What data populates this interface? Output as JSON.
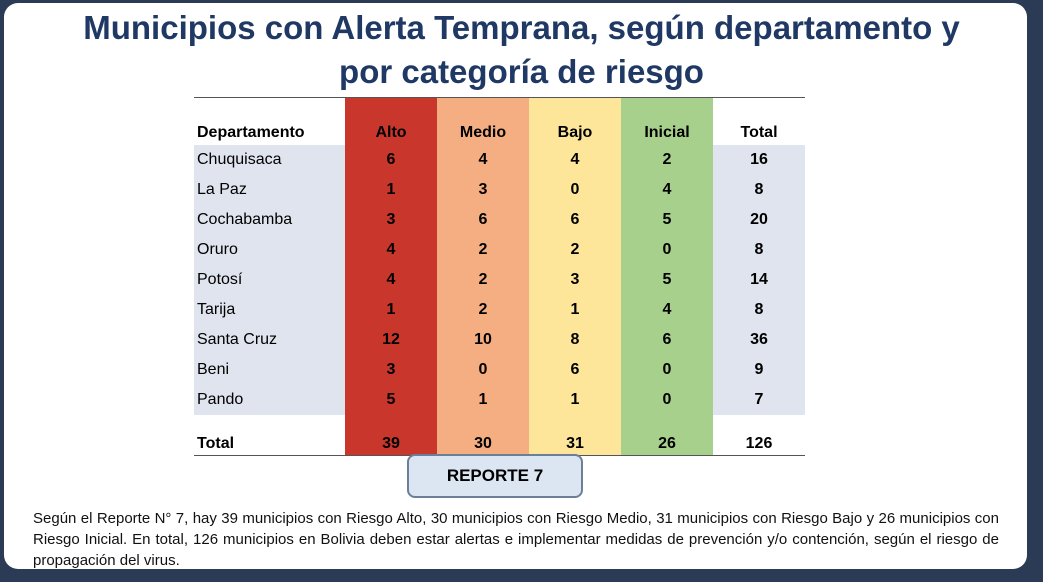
{
  "title": {
    "line1": "Municipios con Alerta Temprana, según departamento y",
    "line2": "por categoría de riesgo"
  },
  "table": {
    "headers": {
      "departamento": "Departamento",
      "alto": "Alto",
      "medio": "Medio",
      "bajo": "Bajo",
      "inicial": "Inicial",
      "total": "Total"
    },
    "rows": [
      {
        "departamento": "Chuquisaca",
        "alto": "6",
        "medio": "4",
        "bajo": "4",
        "inicial": "2",
        "total": "16"
      },
      {
        "departamento": "La Paz",
        "alto": "1",
        "medio": "3",
        "bajo": "0",
        "inicial": "4",
        "total": "8"
      },
      {
        "departamento": "Cochabamba",
        "alto": "3",
        "medio": "6",
        "bajo": "6",
        "inicial": "5",
        "total": "20"
      },
      {
        "departamento": "Oruro",
        "alto": "4",
        "medio": "2",
        "bajo": "2",
        "inicial": "0",
        "total": "8"
      },
      {
        "departamento": "Potosí",
        "alto": "4",
        "medio": "2",
        "bajo": "3",
        "inicial": "5",
        "total": "14"
      },
      {
        "departamento": "Tarija",
        "alto": "1",
        "medio": "2",
        "bajo": "1",
        "inicial": "4",
        "total": "8"
      },
      {
        "departamento": "Santa Cruz",
        "alto": "12",
        "medio": "10",
        "bajo": "8",
        "inicial": "6",
        "total": "36"
      },
      {
        "departamento": "Beni",
        "alto": "3",
        "medio": "0",
        "bajo": "6",
        "inicial": "0",
        "total": "9"
      },
      {
        "departamento": "Pando",
        "alto": "5",
        "medio": "1",
        "bajo": "1",
        "inicial": "0",
        "total": "7"
      }
    ],
    "totals": {
      "label": "Total",
      "alto": "39",
      "medio": "30",
      "bajo": "31",
      "inicial": "26",
      "total": "126"
    }
  },
  "report_button": {
    "label": "REPORTE 7"
  },
  "summary": "Según el Reporte N° 7, hay 39 municipios con Riesgo Alto, 30 municipios con Riesgo Medio, 31 municipios con Riesgo Bajo y 26 municipios con Riesgo Inicial. En total, 126 municipios en Bolivia deben estar alertas e implementar medidas de prevención y/o contención, según el riesgo de propagación del virus.",
  "colors": {
    "alto": "#c9372c",
    "medio": "#f4ae82",
    "bajo": "#fde59a",
    "inicial": "#a7d08c",
    "title": "#1f3864",
    "frame": "#2b3a55"
  }
}
